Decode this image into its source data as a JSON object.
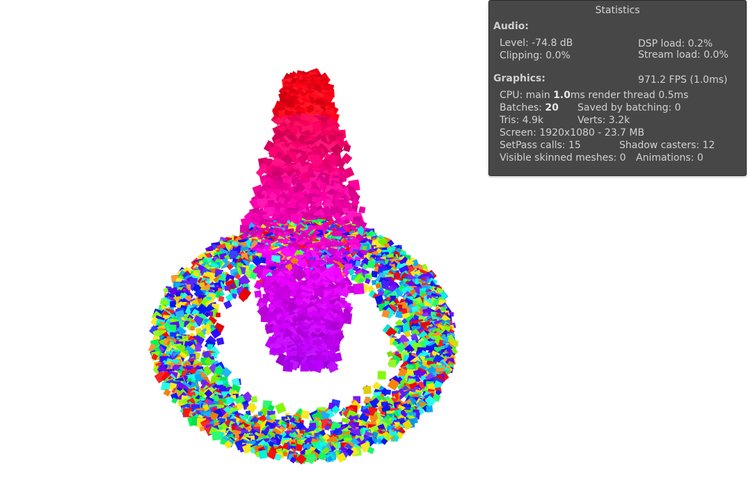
{
  "window": {
    "viewport_background": "#ffffff"
  },
  "statistics": {
    "title": "Statistics",
    "audio": {
      "header": "Audio:",
      "level": "Level: -74.8 dB",
      "dsp_load": "DSP load: 0.2%",
      "clipping": "Clipping: 0.0%",
      "stream_load": "Stream load: 0.0%"
    },
    "graphics": {
      "header": "Graphics:",
      "fps": "971.2 FPS (1.0ms)",
      "cpu_prefix": "CPU: main ",
      "cpu_main_value": "1.0",
      "cpu_suffix": "ms  render thread 0.5ms",
      "batches_prefix": "Batches: ",
      "batches_value": "20",
      "saved_by_batching": "Saved by batching: 0",
      "tris": "Tris: 4.9k",
      "verts": "Verts: 3.2k",
      "screen": "Screen: 1920x1080 - 23.7 MB",
      "setpass_calls": "SetPass calls: 15",
      "shadow_casters": "Shadow casters: 12",
      "visible_skinned_meshes": "Visible skinned meshes: 0",
      "animations": "Animations: 0"
    },
    "colors": {
      "panel_bg": "#474747",
      "text": "#d2d2d2"
    }
  },
  "scene": {
    "description_colors": [
      "#ff0000",
      "#e8006a",
      "#d400d8",
      "#7a00ff",
      "#2020ff",
      "#00c8ff",
      "#00ff80",
      "#ffe000"
    ]
  }
}
